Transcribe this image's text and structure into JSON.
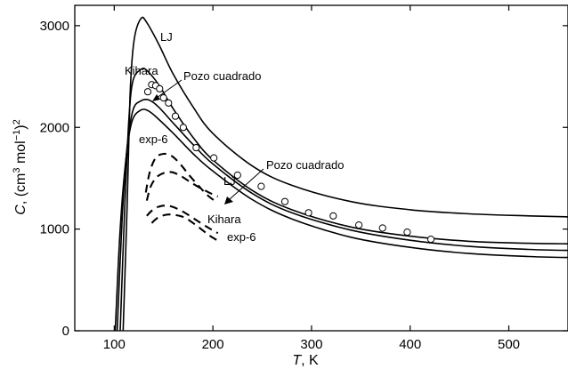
{
  "chart_data": {
    "type": "line",
    "xlabel": {
      "italic": "T",
      "rest": ", K"
    },
    "ylabel": {
      "italic": "C",
      "rest": ", (cm",
      "sup1": "3",
      "mid": " mol",
      "sup2": "−1",
      "end": ")",
      "sup3": "2"
    },
    "xlim": [
      60,
      560
    ],
    "ylim": [
      0,
      3200
    ],
    "xticks": [
      100,
      200,
      300,
      400,
      500
    ],
    "yticks": [
      0,
      1000,
      2000,
      3000
    ],
    "xtick_labels": [
      "100",
      "200",
      "300",
      "400",
      "500"
    ],
    "ytick_labels": [
      "0",
      "1000",
      "2000",
      "3000"
    ],
    "grid": false,
    "series": [
      {
        "name": "LJ",
        "style": "solid",
        "points": [
          [
            109,
            0
          ],
          [
            113,
            1200
          ],
          [
            116,
            2300
          ],
          [
            120,
            2850
          ],
          [
            127,
            3070
          ],
          [
            133,
            3030
          ],
          [
            145,
            2820
          ],
          [
            160,
            2520
          ],
          [
            180,
            2200
          ],
          [
            200,
            1940
          ],
          [
            240,
            1620
          ],
          [
            280,
            1430
          ],
          [
            340,
            1270
          ],
          [
            400,
            1190
          ],
          [
            460,
            1150
          ],
          [
            520,
            1130
          ],
          [
            560,
            1120
          ]
        ]
      },
      {
        "name": "Kihara",
        "style": "solid",
        "points": [
          [
            106,
            0
          ],
          [
            111,
            1300
          ],
          [
            115,
            2100
          ],
          [
            119,
            2460
          ],
          [
            127,
            2570
          ],
          [
            133,
            2560
          ],
          [
            145,
            2420
          ],
          [
            160,
            2180
          ],
          [
            180,
            1900
          ],
          [
            200,
            1680
          ],
          [
            240,
            1380
          ],
          [
            280,
            1190
          ],
          [
            340,
            1020
          ],
          [
            400,
            930
          ],
          [
            460,
            880
          ],
          [
            520,
            860
          ],
          [
            560,
            855
          ]
        ]
      },
      {
        "name": "Pozo cuadrado",
        "style": "solid",
        "points": [
          [
            103,
            0
          ],
          [
            108,
            1100
          ],
          [
            113,
            1800
          ],
          [
            119,
            2170
          ],
          [
            127,
            2260
          ],
          [
            135,
            2270
          ],
          [
            145,
            2200
          ],
          [
            160,
            2040
          ],
          [
            180,
            1830
          ],
          [
            200,
            1640
          ],
          [
            240,
            1350
          ],
          [
            280,
            1160
          ],
          [
            340,
            990
          ],
          [
            400,
            890
          ],
          [
            460,
            830
          ],
          [
            520,
            800
          ],
          [
            560,
            790
          ]
        ]
      },
      {
        "name": "exp-6",
        "style": "solid",
        "points": [
          [
            101,
            0
          ],
          [
            106,
            1000
          ],
          [
            112,
            1700
          ],
          [
            118,
            2060
          ],
          [
            127,
            2170
          ],
          [
            135,
            2160
          ],
          [
            145,
            2080
          ],
          [
            160,
            1940
          ],
          [
            180,
            1740
          ],
          [
            200,
            1570
          ],
          [
            240,
            1290
          ],
          [
            280,
            1100
          ],
          [
            340,
            920
          ],
          [
            400,
            820
          ],
          [
            460,
            760
          ],
          [
            520,
            730
          ],
          [
            560,
            720
          ]
        ]
      },
      {
        "name": "Pozo cuadrado",
        "style": "dashed",
        "points": [
          [
            132,
            1360
          ],
          [
            136,
            1560
          ],
          [
            142,
            1700
          ],
          [
            150,
            1740
          ],
          [
            158,
            1720
          ],
          [
            166,
            1650
          ],
          [
            176,
            1530
          ],
          [
            186,
            1420
          ],
          [
            196,
            1320
          ],
          [
            205,
            1260
          ]
        ]
      },
      {
        "name": "LJ",
        "style": "dashed",
        "points": [
          [
            133,
            1280
          ],
          [
            137,
            1420
          ],
          [
            143,
            1510
          ],
          [
            150,
            1550
          ],
          [
            158,
            1560
          ],
          [
            166,
            1530
          ],
          [
            176,
            1470
          ],
          [
            186,
            1410
          ],
          [
            196,
            1360
          ],
          [
            205,
            1320
          ]
        ]
      },
      {
        "name": "Kihara",
        "style": "dashed",
        "points": [
          [
            133,
            1130
          ],
          [
            138,
            1180
          ],
          [
            145,
            1220
          ],
          [
            154,
            1230
          ],
          [
            164,
            1200
          ],
          [
            175,
            1140
          ],
          [
            186,
            1070
          ],
          [
            196,
            1010
          ],
          [
            205,
            960
          ]
        ]
      },
      {
        "name": "exp-6",
        "style": "dashed",
        "points": [
          [
            138,
            1060
          ],
          [
            144,
            1110
          ],
          [
            152,
            1140
          ],
          [
            161,
            1140
          ],
          [
            172,
            1110
          ],
          [
            184,
            1030
          ],
          [
            196,
            940
          ],
          [
            206,
            880
          ]
        ]
      }
    ],
    "experimental_points": [
      [
        134,
        2350
      ],
      [
        138,
        2420
      ],
      [
        142,
        2410
      ],
      [
        146,
        2380
      ],
      [
        150,
        2290
      ],
      [
        155,
        2240
      ],
      [
        162,
        2110
      ],
      [
        170,
        2000
      ],
      [
        183,
        1800
      ],
      [
        201,
        1700
      ],
      [
        225,
        1530
      ],
      [
        249,
        1420
      ],
      [
        273,
        1270
      ],
      [
        297,
        1160
      ],
      [
        322,
        1130
      ],
      [
        348,
        1040
      ],
      [
        372,
        1010
      ],
      [
        397,
        970
      ],
      [
        421,
        900
      ]
    ],
    "annotations": {
      "lj_solid": "LJ",
      "kihara_solid": "Kihara",
      "pozo_solid": "Pozo cuadrado",
      "exp6_solid": "exp-6",
      "pozo_dashed": "Pozo cuadrado",
      "lj_dashed": "LJ",
      "kihara_dashed": "Kihara",
      "exp6_dashed": "exp-6"
    }
  }
}
